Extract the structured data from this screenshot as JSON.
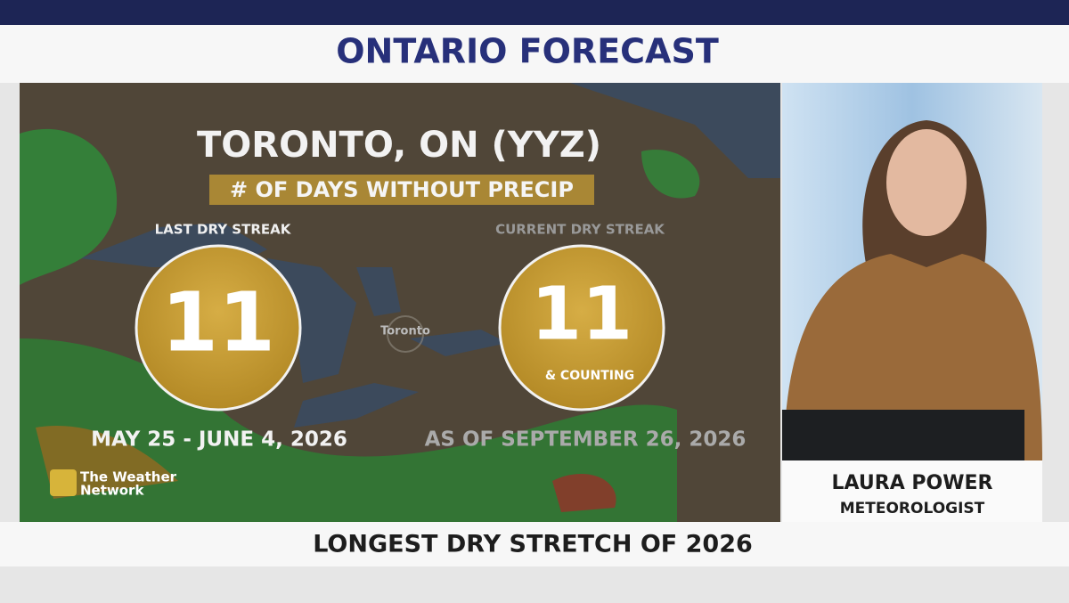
{
  "header": {
    "title": "ONTARIO FORECAST"
  },
  "graphic": {
    "location": "TORONTO, ON (YYZ)",
    "subtitle": "# OF DAYS WITHOUT PRECIP",
    "map_label": "Toronto",
    "streaks": [
      {
        "label": "LAST DRY STREAK",
        "value": 11,
        "date": "MAY 25 - JUNE 4, 2026"
      },
      {
        "label": "CURRENT DRY STREAK",
        "value": 11,
        "note": "& COUNTING",
        "date": "AS OF SEPTEMBER 26, 2026"
      }
    ],
    "logo": [
      "The Weather",
      "Network"
    ]
  },
  "presenter": {
    "name": "LAURA POWER",
    "role": "METEOROLOGIST"
  },
  "footer": {
    "caption": "LONGEST DRY STRETCH OF 2026"
  }
}
